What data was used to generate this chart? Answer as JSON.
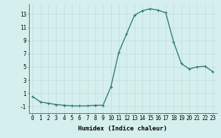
{
  "x": [
    0,
    1,
    2,
    3,
    4,
    5,
    6,
    7,
    8,
    9,
    10,
    11,
    12,
    13,
    14,
    15,
    16,
    17,
    18,
    19,
    20,
    21,
    22,
    23
  ],
  "y": [
    0.5,
    -0.3,
    -0.5,
    -0.7,
    -0.8,
    -0.9,
    -0.9,
    -0.9,
    -0.8,
    -0.8,
    2.0,
    7.2,
    10.0,
    12.8,
    13.5,
    13.8,
    13.6,
    13.2,
    8.8,
    5.5,
    4.7,
    5.0,
    5.1,
    4.3
  ],
  "line_color": "#2e7d6e",
  "marker": "+",
  "marker_size": 3,
  "bg_color": "#d4efed",
  "grid_color": "#c0dbd8",
  "xlabel": "Humidex (Indice chaleur)",
  "xlim": [
    -0.5,
    23.5
  ],
  "ylim": [
    -2,
    14.5
  ],
  "yticks": [
    -1,
    1,
    3,
    5,
    7,
    9,
    11,
    13
  ],
  "xticks": [
    0,
    1,
    2,
    3,
    4,
    5,
    6,
    7,
    8,
    9,
    10,
    11,
    12,
    13,
    14,
    15,
    16,
    17,
    18,
    19,
    20,
    21,
    22,
    23
  ],
  "tick_fontsize": 5.5,
  "label_fontsize": 6.5,
  "linewidth": 1.0,
  "markeredgewidth": 0.8
}
